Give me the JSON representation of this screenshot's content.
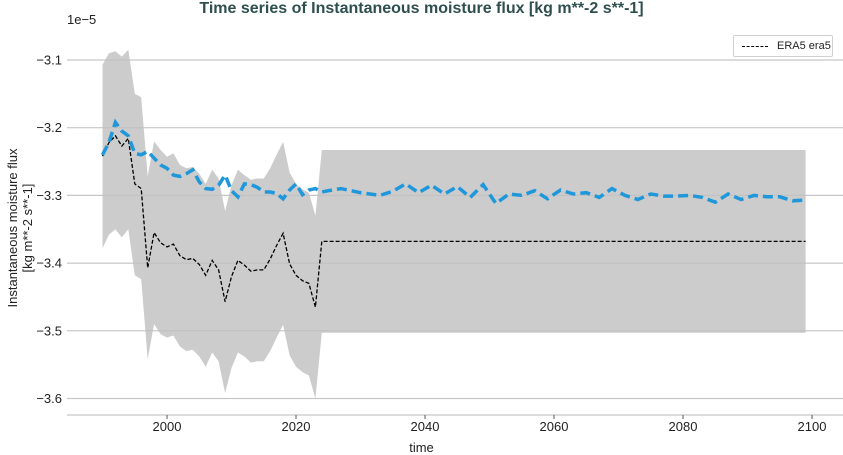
{
  "chart_data": {
    "type": "line",
    "title": "Time series of Instantaneous moisture flux [kg m**-2 s**-1]",
    "xlabel": "time",
    "ylabel": "Instantaneous moisture flux\n[kg m**-2 s**-1]",
    "ylabel_line1": "Instantaneous moisture flux",
    "ylabel_line2": "[kg m**-2 s**-1]",
    "y_offset_label": "1e−5",
    "xlim": [
      1985,
      2104
    ],
    "ylim": [
      -3.63,
      -3.06
    ],
    "y_scale": "1e-5",
    "x_ticks": [
      2000,
      2020,
      2040,
      2060,
      2080,
      2100
    ],
    "x_tick_labels": [
      "2000",
      "2020",
      "2040",
      "2060",
      "2080",
      "2100"
    ],
    "y_ticks": [
      -3.1,
      -3.2,
      -3.3,
      -3.4,
      -3.5,
      -3.6
    ],
    "y_tick_labels": [
      "−3.1",
      "−3.2",
      "−3.3",
      "−3.4",
      "−3.5",
      "−3.6"
    ],
    "grid": {
      "y": true,
      "x": false
    },
    "legend": {
      "position": "upper right",
      "entries": [
        "ERA5 era5"
      ]
    },
    "colors": {
      "era5": "#000000",
      "ensemble_mean": "#1f97db",
      "spread": "#cccccc",
      "grid": "#b0b0b0",
      "title": "#2f4f4f"
    },
    "series": [
      {
        "name": "ERA5 era5",
        "style": "thin black dashed",
        "x": [
          1990,
          1991,
          1992,
          1993,
          1994,
          1995,
          1996,
          1997,
          1998,
          1999,
          2000,
          2001,
          2002,
          2003,
          2004,
          2005,
          2006,
          2007,
          2008,
          2009,
          2010,
          2011,
          2012,
          2013,
          2014,
          2015,
          2016,
          2017,
          2018,
          2019,
          2020,
          2021,
          2022,
          2023,
          2024,
          2025,
          2099
        ],
        "values": [
          -3.242,
          -3.222,
          -3.212,
          -3.227,
          -3.216,
          -3.283,
          -3.29,
          -3.407,
          -3.355,
          -3.37,
          -3.376,
          -3.372,
          -3.389,
          -3.395,
          -3.393,
          -3.402,
          -3.418,
          -3.396,
          -3.41,
          -3.457,
          -3.42,
          -3.396,
          -3.403,
          -3.412,
          -3.41,
          -3.41,
          -3.394,
          -3.374,
          -3.356,
          -3.401,
          -3.418,
          -3.426,
          -3.43,
          -3.465,
          -3.368,
          -3.368,
          -3.368
        ]
      },
      {
        "name": "ensemble mean (unlabeled)",
        "style": "thick blue dashed",
        "x": [
          1990,
          1991,
          1992,
          1993,
          1994,
          1995,
          1996,
          1997,
          1998,
          1999,
          2000,
          2001,
          2002,
          2003,
          2004,
          2005,
          2006,
          2007,
          2008,
          2009,
          2010,
          2011,
          2012,
          2013,
          2014,
          2015,
          2016,
          2017,
          2018,
          2019,
          2020,
          2021,
          2022,
          2023,
          2024,
          2025,
          2027,
          2030,
          2033,
          2035,
          2037,
          2039,
          2041,
          2043,
          2045,
          2047,
          2049,
          2051,
          2053,
          2055,
          2057,
          2059,
          2061,
          2063,
          2065,
          2067,
          2069,
          2071,
          2073,
          2075,
          2077,
          2079,
          2081,
          2083,
          2085,
          2087,
          2089,
          2091,
          2093,
          2095,
          2097,
          2099
        ],
        "values": [
          -3.24,
          -3.222,
          -3.192,
          -3.205,
          -3.212,
          -3.238,
          -3.24,
          -3.235,
          -3.245,
          -3.255,
          -3.26,
          -3.27,
          -3.272,
          -3.268,
          -3.262,
          -3.28,
          -3.29,
          -3.291,
          -3.285,
          -3.27,
          -3.293,
          -3.302,
          -3.283,
          -3.284,
          -3.288,
          -3.295,
          -3.295,
          -3.297,
          -3.305,
          -3.292,
          -3.283,
          -3.299,
          -3.292,
          -3.29,
          -3.295,
          -3.293,
          -3.29,
          -3.296,
          -3.3,
          -3.294,
          -3.283,
          -3.296,
          -3.285,
          -3.298,
          -3.287,
          -3.303,
          -3.284,
          -3.312,
          -3.298,
          -3.3,
          -3.293,
          -3.305,
          -3.292,
          -3.298,
          -3.296,
          -3.303,
          -3.29,
          -3.3,
          -3.306,
          -3.298,
          -3.301,
          -3.301,
          -3.3,
          -3.303,
          -3.31,
          -3.298,
          -3.306,
          -3.3,
          -3.302,
          -3.302,
          -3.308,
          -3.307
        ]
      },
      {
        "name": "spread envelope",
        "style": "grey filled band",
        "x": [
          1990,
          1991,
          1992,
          1993,
          1994,
          1995,
          1996,
          1997,
          1998,
          1999,
          2000,
          2001,
          2002,
          2003,
          2004,
          2005,
          2006,
          2007,
          2008,
          2009,
          2010,
          2011,
          2012,
          2013,
          2014,
          2015,
          2016,
          2017,
          2018,
          2019,
          2020,
          2021,
          2022,
          2023,
          2024,
          2025,
          2099
        ],
        "upper": [
          -3.107,
          -3.09,
          -3.087,
          -3.095,
          -3.085,
          -3.15,
          -3.155,
          -3.272,
          -3.22,
          -3.233,
          -3.243,
          -3.238,
          -3.255,
          -3.26,
          -3.258,
          -3.268,
          -3.283,
          -3.262,
          -3.275,
          -3.323,
          -3.285,
          -3.262,
          -3.27,
          -3.277,
          -3.275,
          -3.275,
          -3.26,
          -3.24,
          -3.221,
          -3.266,
          -3.283,
          -3.291,
          -3.296,
          -3.33,
          -3.233,
          -3.233,
          -3.233
        ],
        "lower": [
          -3.378,
          -3.358,
          -3.35,
          -3.362,
          -3.35,
          -3.418,
          -3.424,
          -3.542,
          -3.49,
          -3.505,
          -3.51,
          -3.507,
          -3.523,
          -3.53,
          -3.528,
          -3.538,
          -3.553,
          -3.532,
          -3.545,
          -3.592,
          -3.555,
          -3.532,
          -3.538,
          -3.547,
          -3.545,
          -3.545,
          -3.53,
          -3.51,
          -3.491,
          -3.536,
          -3.553,
          -3.561,
          -3.566,
          -3.6,
          -3.503,
          -3.503,
          -3.503
        ]
      }
    ]
  }
}
